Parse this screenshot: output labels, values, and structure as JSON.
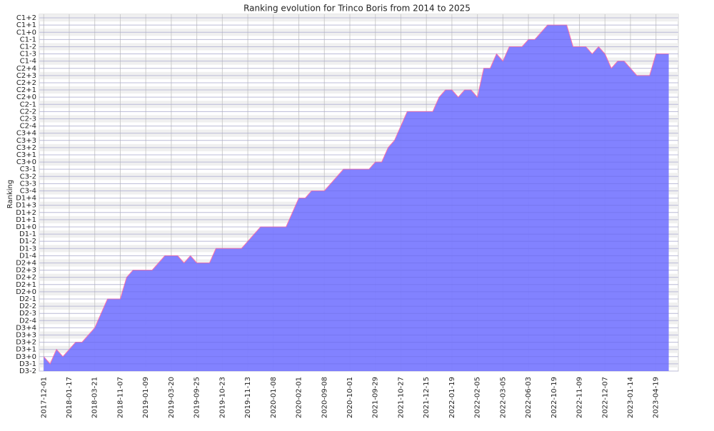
{
  "chart_data": {
    "type": "area",
    "title": "Ranking evolution for Trinco Boris from 2014 to 2025",
    "y_label": "Ranking",
    "color": "#7b7bff",
    "line_color": "#ff6fa8",
    "x": [
      0,
      1,
      2,
      3,
      4,
      5,
      6,
      8,
      10,
      12,
      13,
      14,
      17,
      19,
      21,
      22,
      23,
      24,
      26,
      27,
      31,
      34,
      38,
      40,
      41,
      42,
      44,
      47,
      51,
      52,
      53,
      54,
      55,
      57,
      61,
      62,
      63,
      64,
      65,
      66,
      67,
      68,
      69,
      70,
      71,
      72,
      73,
      75,
      76,
      77,
      79,
      82,
      83,
      85,
      86,
      87,
      88,
      89,
      90,
      91,
      93,
      95,
      96,
      98
    ],
    "values": [
      2,
      1,
      3,
      2,
      3,
      4,
      4,
      6,
      10,
      10,
      13,
      14,
      14,
      16,
      16,
      15,
      16,
      15,
      15,
      17,
      17,
      20,
      20,
      24,
      24,
      25,
      25,
      28,
      28,
      29,
      29,
      31,
      32,
      36,
      36,
      38,
      39,
      39,
      38,
      39,
      39,
      38,
      42,
      42,
      44,
      43,
      45,
      45,
      46,
      46,
      48,
      48,
      45,
      45,
      44,
      45,
      44,
      42,
      43,
      43,
      41,
      41,
      44,
      44
    ],
    "xlim": [
      -0.7,
      99.5
    ],
    "ylim": [
      0,
      49.5
    ],
    "grid": true,
    "xticks": [
      {
        "value": 0,
        "label": "2017-12-01"
      },
      {
        "value": 4,
        "label": "2018-01-17"
      },
      {
        "value": 8,
        "label": "2018-03-21"
      },
      {
        "value": 12,
        "label": "2018-11-07"
      },
      {
        "value": 16,
        "label": "2019-01-09"
      },
      {
        "value": 20,
        "label": "2019-03-20"
      },
      {
        "value": 24,
        "label": "2019-09-25"
      },
      {
        "value": 28,
        "label": "2019-10-23"
      },
      {
        "value": 32,
        "label": "2019-11-13"
      },
      {
        "value": 36,
        "label": "2020-01-08"
      },
      {
        "value": 40,
        "label": "2020-02-01"
      },
      {
        "value": 44,
        "label": "2020-09-08"
      },
      {
        "value": 48,
        "label": "2020-10-01"
      },
      {
        "value": 52,
        "label": "2021-09-29"
      },
      {
        "value": 56,
        "label": "2021-10-27"
      },
      {
        "value": 60,
        "label": "2021-12-15"
      },
      {
        "value": 64,
        "label": "2022-01-19"
      },
      {
        "value": 68,
        "label": "2022-02-05"
      },
      {
        "value": 72,
        "label": "2022-03-05"
      },
      {
        "value": 76,
        "label": "2022-06-03"
      },
      {
        "value": 80,
        "label": "2022-10-19"
      },
      {
        "value": 84,
        "label": "2022-11-09"
      },
      {
        "value": 88,
        "label": "2022-12-07"
      },
      {
        "value": 92,
        "label": "2023-01-14"
      },
      {
        "value": 96,
        "label": "2023-04-19"
      }
    ],
    "yticks": [
      {
        "value": 0,
        "label": "D3-2"
      },
      {
        "value": 1,
        "label": "D3-1"
      },
      {
        "value": 2,
        "label": "D3+0"
      },
      {
        "value": 3,
        "label": "D3+1"
      },
      {
        "value": 4,
        "label": "D3+2"
      },
      {
        "value": 5,
        "label": "D3+3"
      },
      {
        "value": 6,
        "label": "D3+4"
      },
      {
        "value": 7,
        "label": "D2-4"
      },
      {
        "value": 8,
        "label": "D2-3"
      },
      {
        "value": 9,
        "label": "D2-2"
      },
      {
        "value": 10,
        "label": "D2-1"
      },
      {
        "value": 11,
        "label": "D2+0"
      },
      {
        "value": 12,
        "label": "D2+1"
      },
      {
        "value": 13,
        "label": "D2+2"
      },
      {
        "value": 14,
        "label": "D2+3"
      },
      {
        "value": 15,
        "label": "D2+4"
      },
      {
        "value": 16,
        "label": "D1-4"
      },
      {
        "value": 17,
        "label": "D1-3"
      },
      {
        "value": 18,
        "label": "D1-2"
      },
      {
        "value": 19,
        "label": "D1-1"
      },
      {
        "value": 20,
        "label": "D1+0"
      },
      {
        "value": 21,
        "label": "D1+1"
      },
      {
        "value": 22,
        "label": "D1+2"
      },
      {
        "value": 23,
        "label": "D1+3"
      },
      {
        "value": 24,
        "label": "D1+4"
      },
      {
        "value": 25,
        "label": "C3-4"
      },
      {
        "value": 26,
        "label": "C3-3"
      },
      {
        "value": 27,
        "label": "C3-2"
      },
      {
        "value": 28,
        "label": "C3-1"
      },
      {
        "value": 29,
        "label": "C3+0"
      },
      {
        "value": 30,
        "label": "C3+1"
      },
      {
        "value": 31,
        "label": "C3+2"
      },
      {
        "value": 32,
        "label": "C3+3"
      },
      {
        "value": 33,
        "label": "C3+4"
      },
      {
        "value": 34,
        "label": "C2-4"
      },
      {
        "value": 35,
        "label": "C2-3"
      },
      {
        "value": 36,
        "label": "C2-2"
      },
      {
        "value": 37,
        "label": "C2-1"
      },
      {
        "value": 38,
        "label": "C2+0"
      },
      {
        "value": 39,
        "label": "C2+1"
      },
      {
        "value": 40,
        "label": "C2+2"
      },
      {
        "value": 41,
        "label": "C2+3"
      },
      {
        "value": 42,
        "label": "C2+4"
      },
      {
        "value": 43,
        "label": "C1-4"
      },
      {
        "value": 44,
        "label": "C1-3"
      },
      {
        "value": 45,
        "label": "C1-2"
      },
      {
        "value": 46,
        "label": "C1-1"
      },
      {
        "value": 47,
        "label": "C1+0"
      },
      {
        "value": 48,
        "label": "C1+1"
      },
      {
        "value": 49,
        "label": "C1+2"
      }
    ]
  }
}
